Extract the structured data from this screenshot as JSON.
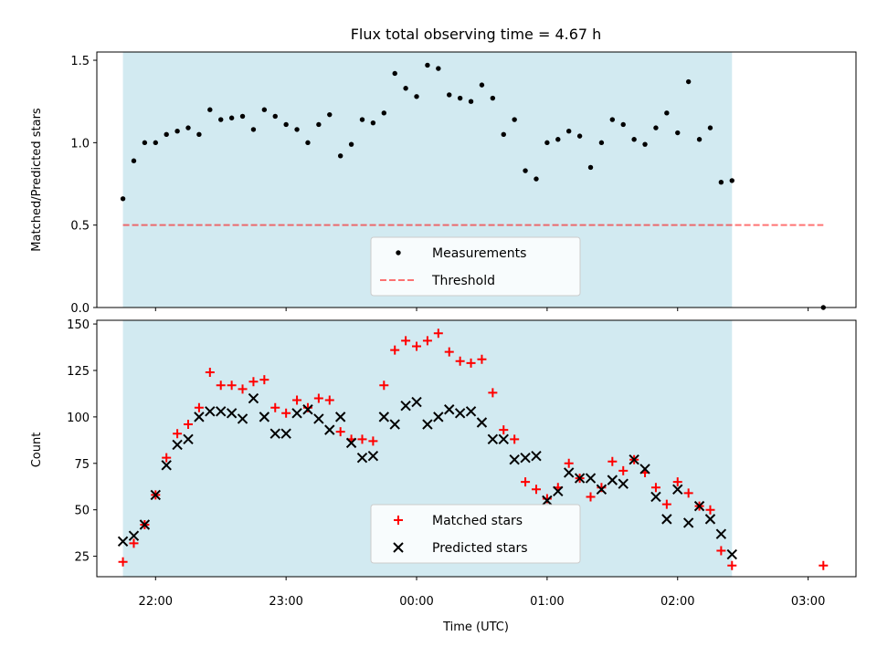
{
  "title": "Flux total observing time = 4.67 h",
  "colors": {
    "shade": "#add8e6",
    "measurement": "#000000",
    "threshold": "#ff0000",
    "matched": "#ff0000",
    "predicted": "#000000"
  },
  "chart_data": [
    {
      "type": "scatter",
      "panel": "top",
      "ylabel": "Matched/Predicted stars",
      "ylim": [
        0,
        1.55
      ],
      "yticks": [
        0.0,
        0.5,
        1.0,
        1.5
      ],
      "ytick_labels": [
        "0.0",
        "0.5",
        "1.0",
        "1.5"
      ],
      "x_range": [
        "21:33",
        "03:22"
      ],
      "shaded_span": [
        "21:45",
        "02:25"
      ],
      "legend_location": "lower center",
      "threshold": {
        "name": "Threshold",
        "value": 0.5,
        "x_from": "21:45",
        "x_to": "03:07",
        "style": "dashed"
      },
      "series": [
        {
          "name": "Measurements",
          "x": [
            "21:45",
            "21:50",
            "21:55",
            "22:00",
            "22:05",
            "22:10",
            "22:15",
            "22:20",
            "22:25",
            "22:30",
            "22:35",
            "22:40",
            "22:45",
            "22:50",
            "22:55",
            "23:00",
            "23:05",
            "23:10",
            "23:15",
            "23:20",
            "23:25",
            "23:30",
            "23:35",
            "23:40",
            "23:45",
            "23:50",
            "23:55",
            "00:00",
            "00:05",
            "00:10",
            "00:15",
            "00:20",
            "00:25",
            "00:30",
            "00:35",
            "00:40",
            "00:45",
            "00:50",
            "00:55",
            "01:00",
            "01:05",
            "01:10",
            "01:15",
            "01:20",
            "01:25",
            "01:30",
            "01:35",
            "01:40",
            "01:45",
            "01:50",
            "01:55",
            "02:00",
            "02:05",
            "02:10",
            "02:15",
            "02:20",
            "02:25",
            "03:07"
          ],
          "y": [
            0.66,
            0.89,
            1.0,
            1.0,
            1.05,
            1.07,
            1.09,
            1.05,
            1.2,
            1.14,
            1.15,
            1.16,
            1.08,
            1.2,
            1.16,
            1.11,
            1.08,
            1.0,
            1.11,
            1.17,
            0.92,
            0.99,
            1.14,
            1.12,
            1.18,
            1.42,
            1.33,
            1.28,
            1.47,
            1.45,
            1.29,
            1.27,
            1.25,
            1.35,
            1.27,
            1.05,
            1.14,
            0.83,
            0.78,
            1.0,
            1.02,
            1.07,
            1.04,
            0.85,
            1.0,
            1.14,
            1.11,
            1.02,
            0.99,
            1.09,
            1.18,
            1.06,
            1.37,
            1.02,
            1.09,
            0.76,
            0.77,
            0.0
          ]
        }
      ]
    },
    {
      "type": "scatter",
      "panel": "bottom",
      "xlabel": "Time (UTC)",
      "ylabel": "Count",
      "ylim": [
        14,
        152
      ],
      "yticks": [
        25,
        50,
        75,
        100,
        125,
        150
      ],
      "ytick_labels": [
        "25",
        "50",
        "75",
        "100",
        "125",
        "150"
      ],
      "xticks": [
        "22:00",
        "23:00",
        "00:00",
        "01:00",
        "02:00",
        "03:00"
      ],
      "x_range": [
        "21:33",
        "03:22"
      ],
      "shaded_span": [
        "21:45",
        "02:25"
      ],
      "legend_location": "lower center",
      "series": [
        {
          "name": "Matched stars",
          "marker": "plus",
          "x": [
            "21:45",
            "21:50",
            "21:55",
            "22:00",
            "22:05",
            "22:10",
            "22:15",
            "22:20",
            "22:25",
            "22:30",
            "22:35",
            "22:40",
            "22:45",
            "22:50",
            "22:55",
            "23:00",
            "23:05",
            "23:10",
            "23:15",
            "23:20",
            "23:25",
            "23:30",
            "23:35",
            "23:40",
            "23:45",
            "23:50",
            "23:55",
            "00:00",
            "00:05",
            "00:10",
            "00:15",
            "00:20",
            "00:25",
            "00:30",
            "00:35",
            "00:40",
            "00:45",
            "00:50",
            "00:55",
            "01:00",
            "01:05",
            "01:10",
            "01:15",
            "01:20",
            "01:25",
            "01:30",
            "01:35",
            "01:40",
            "01:45",
            "01:50",
            "01:55",
            "02:00",
            "02:05",
            "02:10",
            "02:15",
            "02:20",
            "02:25",
            "03:07"
          ],
          "y": [
            22,
            32,
            42,
            58,
            78,
            91,
            96,
            105,
            124,
            117,
            117,
            115,
            119,
            120,
            105,
            102,
            109,
            105,
            110,
            109,
            92,
            88,
            88,
            87,
            117,
            136,
            141,
            138,
            141,
            145,
            135,
            130,
            129,
            131,
            113,
            93,
            88,
            65,
            61,
            56,
            62,
            75,
            67,
            57,
            62,
            76,
            71,
            77,
            70,
            62,
            53,
            65,
            59,
            52,
            50,
            28,
            20,
            20
          ]
        },
        {
          "name": "Predicted stars",
          "marker": "cross",
          "x": [
            "21:45",
            "21:50",
            "21:55",
            "22:00",
            "22:05",
            "22:10",
            "22:15",
            "22:20",
            "22:25",
            "22:30",
            "22:35",
            "22:40",
            "22:45",
            "22:50",
            "22:55",
            "23:00",
            "23:05",
            "23:10",
            "23:15",
            "23:20",
            "23:25",
            "23:30",
            "23:35",
            "23:40",
            "23:45",
            "23:50",
            "23:55",
            "00:00",
            "00:05",
            "00:10",
            "00:15",
            "00:20",
            "00:25",
            "00:30",
            "00:35",
            "00:40",
            "00:45",
            "00:50",
            "00:55",
            "01:00",
            "01:05",
            "01:10",
            "01:15",
            "01:20",
            "01:25",
            "01:30",
            "01:35",
            "01:40",
            "01:45",
            "01:50",
            "01:55",
            "02:00",
            "02:05",
            "02:10",
            "02:15",
            "02:20",
            "02:25"
          ],
          "y": [
            33,
            36,
            42,
            58,
            74,
            85,
            88,
            100,
            103,
            103,
            102,
            99,
            110,
            100,
            91,
            91,
            102,
            104,
            99,
            93,
            100,
            86,
            78,
            79,
            100,
            96,
            106,
            108,
            96,
            100,
            104,
            102,
            103,
            97,
            88,
            88,
            77,
            78,
            79,
            55,
            60,
            70,
            67,
            67,
            61,
            66,
            64,
            77,
            72,
            57,
            45,
            61,
            43,
            52,
            45,
            37,
            26
          ]
        }
      ]
    }
  ]
}
